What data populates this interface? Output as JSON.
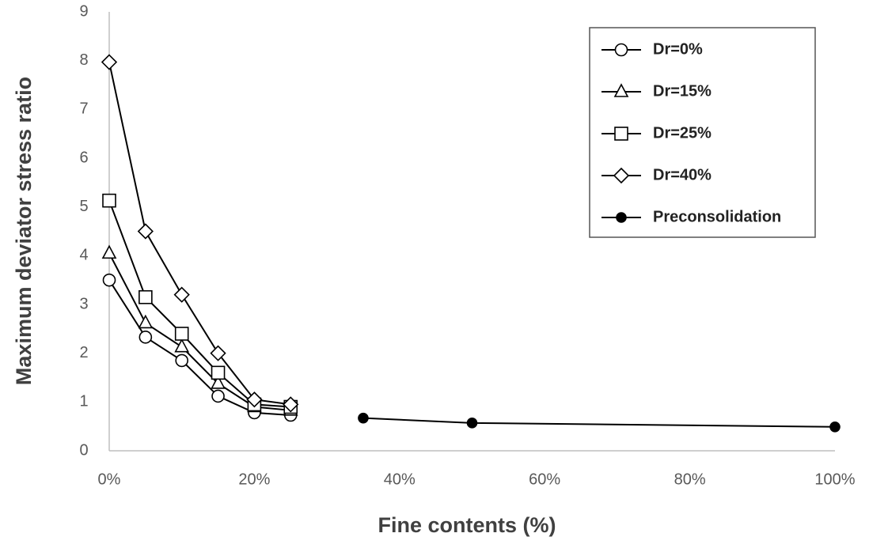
{
  "chart_data": {
    "type": "line",
    "x_label": "Fine contents (%)",
    "y_label": "Maximum deviator stress ratio",
    "xlim": [
      0,
      100
    ],
    "xticks": [
      {
        "value": 0,
        "label": "0%"
      },
      {
        "value": 20,
        "label": "20%"
      },
      {
        "value": 40,
        "label": "40%"
      },
      {
        "value": 60,
        "label": "60%"
      },
      {
        "value": 80,
        "label": "80%"
      },
      {
        "value": 100,
        "label": "100%"
      }
    ],
    "ylim": [
      0,
      9
    ],
    "yticks": [
      0,
      1,
      2,
      3,
      4,
      5,
      6,
      7,
      8,
      9
    ],
    "grid": false,
    "legend": "upper right",
    "series": [
      {
        "name": "Dr=0%",
        "color": "#000000",
        "marker": "circle",
        "x": [
          0,
          5,
          10,
          15,
          20,
          25
        ],
        "values": [
          3.5,
          2.33,
          1.85,
          1.12,
          0.78,
          0.73
        ]
      },
      {
        "name": "Dr=15%",
        "color": "#000000",
        "marker": "triangle",
        "x": [
          0,
          5,
          10,
          15,
          20,
          25
        ],
        "values": [
          4.05,
          2.62,
          2.13,
          1.38,
          0.9,
          0.83
        ]
      },
      {
        "name": "Dr=25%",
        "color": "#000000",
        "marker": "square",
        "x": [
          0,
          5,
          10,
          15,
          20,
          25
        ],
        "values": [
          5.13,
          3.15,
          2.4,
          1.6,
          0.95,
          0.9
        ]
      },
      {
        "name": "Dr=40%",
        "color": "#000000",
        "marker": "diamond",
        "x": [
          0,
          5,
          10,
          15,
          20,
          25
        ],
        "values": [
          7.97,
          4.5,
          3.2,
          2.0,
          1.05,
          0.95
        ]
      },
      {
        "name": "Preconsolidation",
        "color": "#000000",
        "marker": "dot",
        "x": [
          35,
          50,
          100
        ],
        "values": [
          0.67,
          0.57,
          0.49
        ]
      }
    ]
  }
}
